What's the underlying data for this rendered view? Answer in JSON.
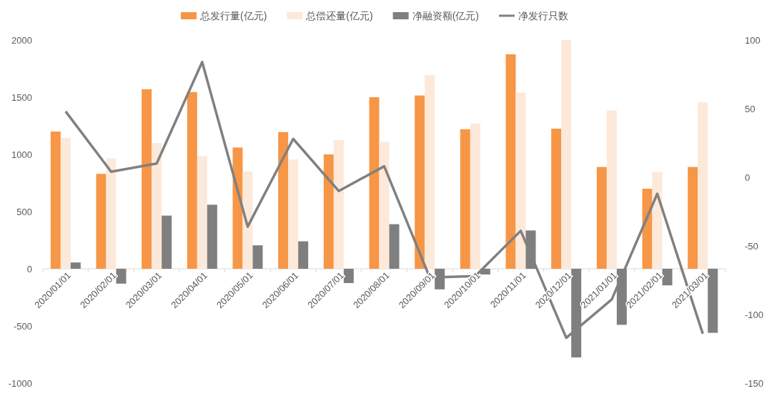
{
  "chart_data": {
    "type": "bar",
    "categories": [
      "2020/01/01",
      "2020/02/01",
      "2020/03/01",
      "2020/04/01",
      "2020/05/01",
      "2020/06/01",
      "2020/07/01",
      "2020/08/01",
      "2020/09/01",
      "2020/10/01",
      "2020/11/01",
      "2020/12/01",
      "2021/01/01",
      "2021/02/01",
      "2021/03/01"
    ],
    "series": [
      {
        "name": "总发行量(亿元)",
        "color": "#f79646",
        "values": [
          1200,
          830,
          1570,
          1545,
          1060,
          1195,
          1000,
          1500,
          1515,
          1220,
          1875,
          1225,
          890,
          700,
          890
        ]
      },
      {
        "name": "总偿还量(亿元)",
        "color": "#fde9d9",
        "values": [
          1145,
          965,
          1100,
          985,
          850,
          955,
          1125,
          1110,
          1695,
          1270,
          1540,
          2000,
          1385,
          845,
          1455
        ]
      },
      {
        "name": "净融资额(亿元)",
        "color": "#7f7f7f",
        "values": [
          55,
          -130,
          465,
          560,
          205,
          240,
          -125,
          390,
          -180,
          -50,
          335,
          -775,
          -490,
          -145,
          -560
        ]
      },
      {
        "name": "净发行只数",
        "color": "#808080",
        "type": "line",
        "axis": "y2",
        "values": [
          48,
          4,
          10,
          84,
          -36,
          28,
          -10,
          8,
          -73,
          -72,
          -39,
          -117,
          -89,
          -12,
          -114
        ]
      }
    ],
    "ylim": [
      -1000,
      2000
    ],
    "yticks": [
      -1000,
      -500,
      0,
      500,
      1000,
      1500,
      2000
    ],
    "y2lim": [
      -150,
      100
    ],
    "y2ticks": [
      -150,
      -100,
      -50,
      0,
      50,
      100
    ],
    "legend": "top",
    "grid": false
  }
}
